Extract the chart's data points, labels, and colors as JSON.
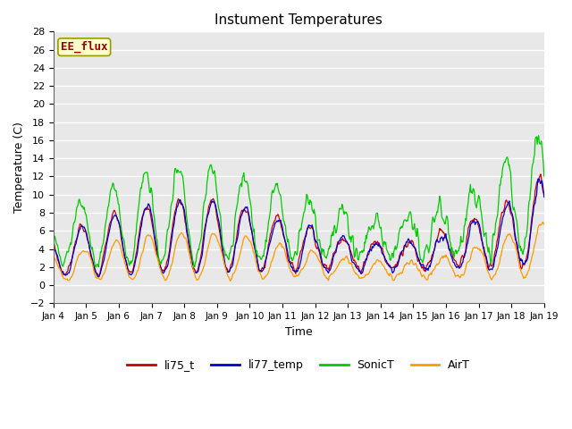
{
  "title": "Instument Temperatures",
  "xlabel": "Time",
  "ylabel": "Temperature (C)",
  "ylim": [
    -2,
    28
  ],
  "yticks": [
    -2,
    0,
    2,
    4,
    6,
    8,
    10,
    12,
    14,
    16,
    18,
    20,
    22,
    24,
    26,
    28
  ],
  "xtick_labels": [
    "Jan 4",
    "Jan 5",
    "Jan 6",
    "Jan 7",
    "Jan 8",
    "Jan 9",
    "Jan 10",
    "Jan 11",
    "Jan 12",
    "Jan 13",
    "Jan 14",
    "Jan 15",
    "Jan 16",
    "Jan 17",
    "Jan 18",
    "Jan 19"
  ],
  "series": [
    "li75_t",
    "li77_temp",
    "SonicT",
    "AirT"
  ],
  "colors": [
    "#cc0000",
    "#0000cc",
    "#00cc00",
    "#ff9900"
  ],
  "annotation_text": "EE_flux",
  "annotation_color": "#990000",
  "annotation_bg": "#ffffcc",
  "annotation_border": "#999900",
  "background_color": "#ffffff",
  "plot_bg_color": "#e8e8e8",
  "grid_color": "#ffffff",
  "figsize": [
    6.4,
    4.8
  ],
  "dpi": 100
}
